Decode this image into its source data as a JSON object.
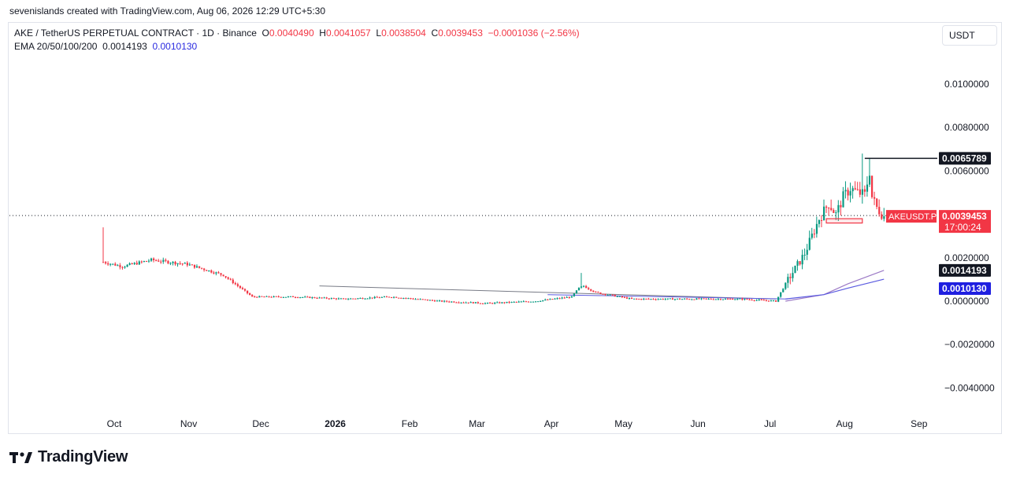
{
  "header": {
    "credit": "sevenislands created with TradingView.com, Aug 06, 2026 12:29 UTC+5:30"
  },
  "legend": {
    "symbol": "AKE / TetherUS PERPETUAL CONTRACT · 1D · Binance",
    "o_label": "O",
    "o_value": "0.0040490",
    "h_label": "H",
    "h_value": "0.0041057",
    "l_label": "L",
    "l_value": "0.0038504",
    "c_label": "C",
    "c_value": "0.0039453",
    "change": "−0.0001036 (−2.56%)",
    "ema_label": "EMA 20/50/100/200",
    "ema_value_1": "0.0014193",
    "ema_value_2": "0.0010130"
  },
  "unit_button": "USDT",
  "footer": {
    "brand": "TradingView"
  },
  "colors": {
    "up": "#089981",
    "down": "#f23645",
    "ema_fast": "#9c7ac6",
    "ema_slow": "#5b5be0",
    "trendline": "#787b86",
    "label_dark": "#131722",
    "label_blue": "#1f1fe0",
    "label_red": "#f23645"
  },
  "chart_data": {
    "type": "candlestick",
    "y_ticks": [
      "0.0100000",
      "0.0080000",
      "0.0060000",
      "0.0020000",
      "0.0000000",
      "−0.0020000",
      "−0.0040000"
    ],
    "y_tick_values": [
      0.01,
      0.008,
      0.006,
      0.002,
      0.0,
      -0.002,
      -0.004
    ],
    "ylim": [
      -0.0045,
      0.0113
    ],
    "x_ticks": [
      "Oct",
      "Nov",
      "Dec",
      "2026",
      "Feb",
      "Mar",
      "Apr",
      "May",
      "Jun",
      "Jul",
      "Aug",
      "Sep"
    ],
    "price_keyframes": {
      "day": [
        0,
        8,
        20,
        35,
        50,
        62,
        80,
        100,
        120,
        140,
        160,
        180,
        195,
        198,
        200,
        205,
        220,
        240,
        265,
        280,
        284,
        288,
        292,
        295,
        298,
        302,
        305,
        308,
        311,
        314,
        317,
        319,
        320,
        322,
        325
      ],
      "close": [
        0.0018,
        0.0016,
        0.0019,
        0.0017,
        0.0012,
        0.0002,
        0.0002,
        0.0001,
        0.0002,
        0.0,
        -0.0001,
        0.0,
        0.0002,
        0.0006,
        0.0007,
        0.0004,
        0.0001,
        0.0001,
        0.0001,
        0.0,
        0.0008,
        0.0015,
        0.0022,
        0.003,
        0.0038,
        0.0045,
        0.004,
        0.0048,
        0.0052,
        0.005,
        0.0049,
        0.006,
        0.0048,
        0.0043,
        0.0039
      ]
    },
    "ema_fast": {
      "day": [
        284,
        300,
        310,
        325
      ],
      "value": [
        0.0,
        0.0003,
        0.0008,
        0.0014193
      ]
    },
    "ema_slow": {
      "day": [
        284,
        300,
        310,
        325
      ],
      "value": [
        0.0001,
        0.0003,
        0.0006,
        0.001013
      ]
    },
    "trendline": {
      "from": [
        90,
        0.0007
      ],
      "to": [
        280,
        0.0001
      ]
    },
    "resistance_line": {
      "from": [
        317,
        0.0065789
      ],
      "to": [
        357,
        0.0065789
      ]
    },
    "horizontal_line": {
      "from": [
        185,
        0.0003
      ],
      "to": [
        285,
        0.0001
      ]
    },
    "zone_box": {
      "from": [
        301,
        0.0038
      ],
      "to": [
        316,
        0.0036
      ]
    },
    "labels": {
      "resistance": "0.0065789",
      "symbol_tag": "AKEUSDT.P",
      "last_price": "0.0039453",
      "countdown": "17:00:24",
      "ema_fast_tag": "0.0014193",
      "ema_slow_tag": "0.0010130"
    },
    "last_price": 0.0039453,
    "spike_high": 0.0068,
    "grid": false
  }
}
